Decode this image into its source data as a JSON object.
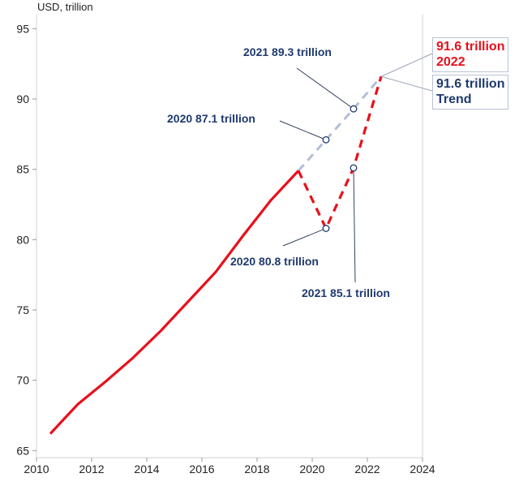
{
  "chart_data": {
    "type": "line",
    "ylabel": "USD, trillion",
    "xlim": [
      2010,
      2024
    ],
    "ylim": [
      64.5,
      96
    ],
    "x_ticks": [
      2010,
      2012,
      2014,
      2016,
      2018,
      2020,
      2022,
      2024
    ],
    "y_ticks": [
      65,
      70,
      75,
      80,
      85,
      90,
      95
    ],
    "colors": {
      "actual": "#e8101b",
      "trend": "#b3bfd6",
      "annotation": "#1f3a6e",
      "axis": "#d0d0d0"
    },
    "series": [
      {
        "key": "actual",
        "style": "solid",
        "x": [
          2010.5,
          2011.5,
          2012.5,
          2013.5,
          2014.5,
          2015.5,
          2016.5,
          2017.5,
          2018.5,
          2019.5
        ],
        "y": [
          66.2,
          68.3,
          69.9,
          71.6,
          73.5,
          75.6,
          77.7,
          80.3,
          82.8,
          84.9
        ]
      },
      {
        "key": "actual",
        "style": "dashed",
        "x": [
          2019.5,
          2020.5,
          2021.5,
          2022.5
        ],
        "y": [
          84.9,
          80.8,
          85.1,
          91.6
        ]
      },
      {
        "key": "trend",
        "style": "dashed",
        "x": [
          2019.5,
          2020.5,
          2021.5,
          2022.5
        ],
        "y": [
          84.9,
          87.1,
          89.3,
          91.6
        ]
      }
    ],
    "annotations": [
      {
        "text": "2021 89.3 trillion",
        "x": 2021.5,
        "y": 89.3
      },
      {
        "text": "2020 87.1 trillion",
        "x": 2020.5,
        "y": 87.1
      },
      {
        "text": "2020 80.8 trillion",
        "x": 2020.5,
        "y": 80.8
      },
      {
        "text": "2021 85.1 trillion",
        "x": 2021.5,
        "y": 85.1
      }
    ],
    "end_labels": [
      {
        "key": "actual",
        "line1": "91.6 trillion",
        "line2": "2022"
      },
      {
        "key": "trend",
        "line1": "91.6 trillion",
        "line2": "Trend"
      }
    ]
  }
}
